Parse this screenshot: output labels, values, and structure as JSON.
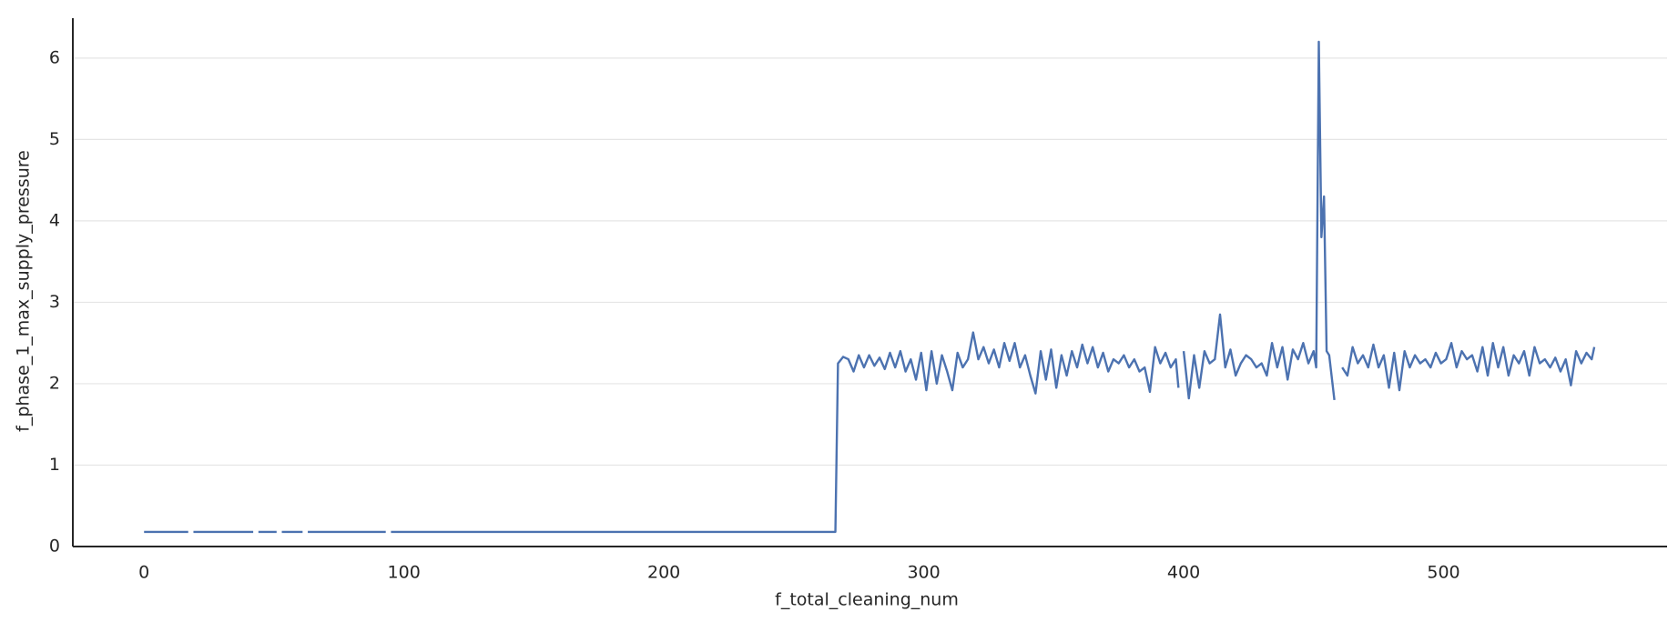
{
  "chart_data": {
    "type": "line",
    "xlabel": "f_total_cleaning_num",
    "ylabel": "f_phase_1_max_supply_pressure",
    "xlim": [
      -27.4,
      586
    ],
    "ylim": [
      0,
      6.49
    ],
    "xticks": [
      0,
      100,
      200,
      300,
      400,
      500
    ],
    "yticks": [
      0,
      1,
      2,
      3,
      4,
      5,
      6
    ],
    "grid": true,
    "color": "#4c72b0",
    "x": [
      0,
      17,
      18,
      19,
      42,
      43,
      44,
      51,
      52,
      53,
      61,
      62,
      63,
      93,
      94,
      95,
      266,
      267,
      269,
      271,
      273,
      275,
      277,
      279,
      281,
      283,
      285,
      287,
      289,
      291,
      293,
      295,
      297,
      299,
      301,
      303,
      305,
      307,
      309,
      311,
      313,
      315,
      317,
      319,
      321,
      323,
      325,
      327,
      329,
      331,
      333,
      335,
      337,
      339,
      341,
      343,
      345,
      347,
      349,
      351,
      353,
      355,
      357,
      359,
      361,
      363,
      365,
      367,
      369,
      371,
      373,
      375,
      377,
      379,
      381,
      383,
      385,
      387,
      389,
      391,
      393,
      395,
      397,
      398,
      399,
      400,
      402,
      404,
      406,
      408,
      410,
      412,
      414,
      416,
      418,
      420,
      422,
      424,
      426,
      428,
      430,
      432,
      434,
      436,
      438,
      440,
      442,
      444,
      446,
      448,
      450,
      451,
      452,
      453,
      454,
      455,
      456,
      458,
      459,
      461,
      463,
      465,
      467,
      469,
      471,
      473,
      475,
      477,
      479,
      481,
      483,
      485,
      487,
      489,
      491,
      493,
      495,
      497,
      499,
      501,
      503,
      505,
      507,
      509,
      511,
      513,
      515,
      517,
      519,
      521,
      523,
      525,
      527,
      529,
      531,
      533,
      535,
      537,
      539,
      541,
      543,
      545,
      547,
      549,
      551,
      553,
      555,
      557,
      558
    ],
    "values": [
      0.18,
      0.18,
      null,
      0.18,
      0.18,
      null,
      0.18,
      0.18,
      null,
      0.18,
      0.18,
      null,
      0.18,
      0.18,
      null,
      0.18,
      0.18,
      2.25,
      2.33,
      2.3,
      2.15,
      2.35,
      2.2,
      2.35,
      2.22,
      2.32,
      2.18,
      2.38,
      2.2,
      2.4,
      2.15,
      2.3,
      2.05,
      2.38,
      1.92,
      2.4,
      2.0,
      2.35,
      2.15,
      1.92,
      2.38,
      2.2,
      2.3,
      2.63,
      2.3,
      2.45,
      2.25,
      2.42,
      2.2,
      2.5,
      2.28,
      2.5,
      2.2,
      2.35,
      2.1,
      1.88,
      2.4,
      2.05,
      2.42,
      1.95,
      2.35,
      2.1,
      2.4,
      2.2,
      2.48,
      2.25,
      2.45,
      2.2,
      2.38,
      2.15,
      2.3,
      2.25,
      2.35,
      2.2,
      2.3,
      2.15,
      2.2,
      1.9,
      2.45,
      2.25,
      2.38,
      2.2,
      2.3,
      1.95,
      null,
      2.4,
      1.82,
      2.35,
      1.95,
      2.4,
      2.25,
      2.3,
      2.85,
      2.2,
      2.42,
      2.1,
      2.25,
      2.35,
      2.3,
      2.2,
      2.25,
      2.1,
      2.5,
      2.2,
      2.45,
      2.05,
      2.42,
      2.3,
      2.5,
      2.25,
      2.4,
      2.2,
      6.2,
      3.8,
      4.3,
      2.4,
      2.35,
      1.8,
      null,
      2.2,
      2.1,
      2.45,
      2.25,
      2.35,
      2.2,
      2.48,
      2.2,
      2.35,
      1.95,
      2.38,
      1.92,
      2.4,
      2.2,
      2.35,
      2.25,
      2.3,
      2.2,
      2.38,
      2.25,
      2.3,
      2.5,
      2.2,
      2.4,
      2.3,
      2.35,
      2.15,
      2.45,
      2.1,
      2.5,
      2.2,
      2.45,
      2.1,
      2.35,
      2.25,
      2.4,
      2.1,
      2.45,
      2.25,
      2.3,
      2.2,
      2.32,
      2.15,
      2.3,
      1.98,
      2.4,
      2.25,
      2.38,
      2.3,
      2.45
    ]
  }
}
